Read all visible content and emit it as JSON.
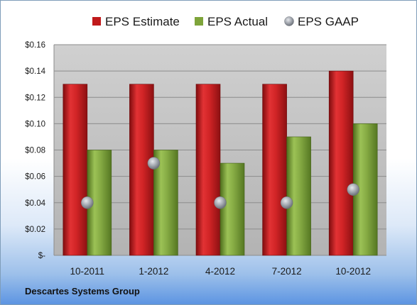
{
  "company_name": "Descartes Systems Group",
  "chart_data": {
    "type": "bar",
    "title": "",
    "xlabel": "",
    "ylabel": "",
    "categories": [
      "10-2011",
      "1-2012",
      "4-2012",
      "7-2012",
      "10-2012"
    ],
    "series": [
      {
        "name": "EPS Estimate",
        "kind": "bar",
        "color": "#c0191b",
        "values": [
          0.13,
          0.13,
          0.13,
          0.13,
          0.14
        ]
      },
      {
        "name": "EPS Actual",
        "kind": "bar",
        "color": "#7ea43a",
        "values": [
          0.08,
          0.08,
          0.07,
          0.09,
          0.1
        ]
      },
      {
        "name": "EPS GAAP",
        "kind": "marker",
        "color": "#9ea3ab",
        "values": [
          0.04,
          0.07,
          0.04,
          0.04,
          0.05
        ]
      }
    ],
    "ylim": [
      0,
      0.16
    ],
    "yticks": [
      0,
      0.02,
      0.04,
      0.06,
      0.08,
      0.1,
      0.12,
      0.14,
      0.16
    ],
    "ytick_labels": [
      "$-",
      "$0.02",
      "$0.04",
      "$0.06",
      "$0.08",
      "$0.10",
      "$0.12",
      "$0.14",
      "$0.16"
    ],
    "grid": true,
    "legend": "top-center",
    "plot_background": "#bfbfbf"
  }
}
